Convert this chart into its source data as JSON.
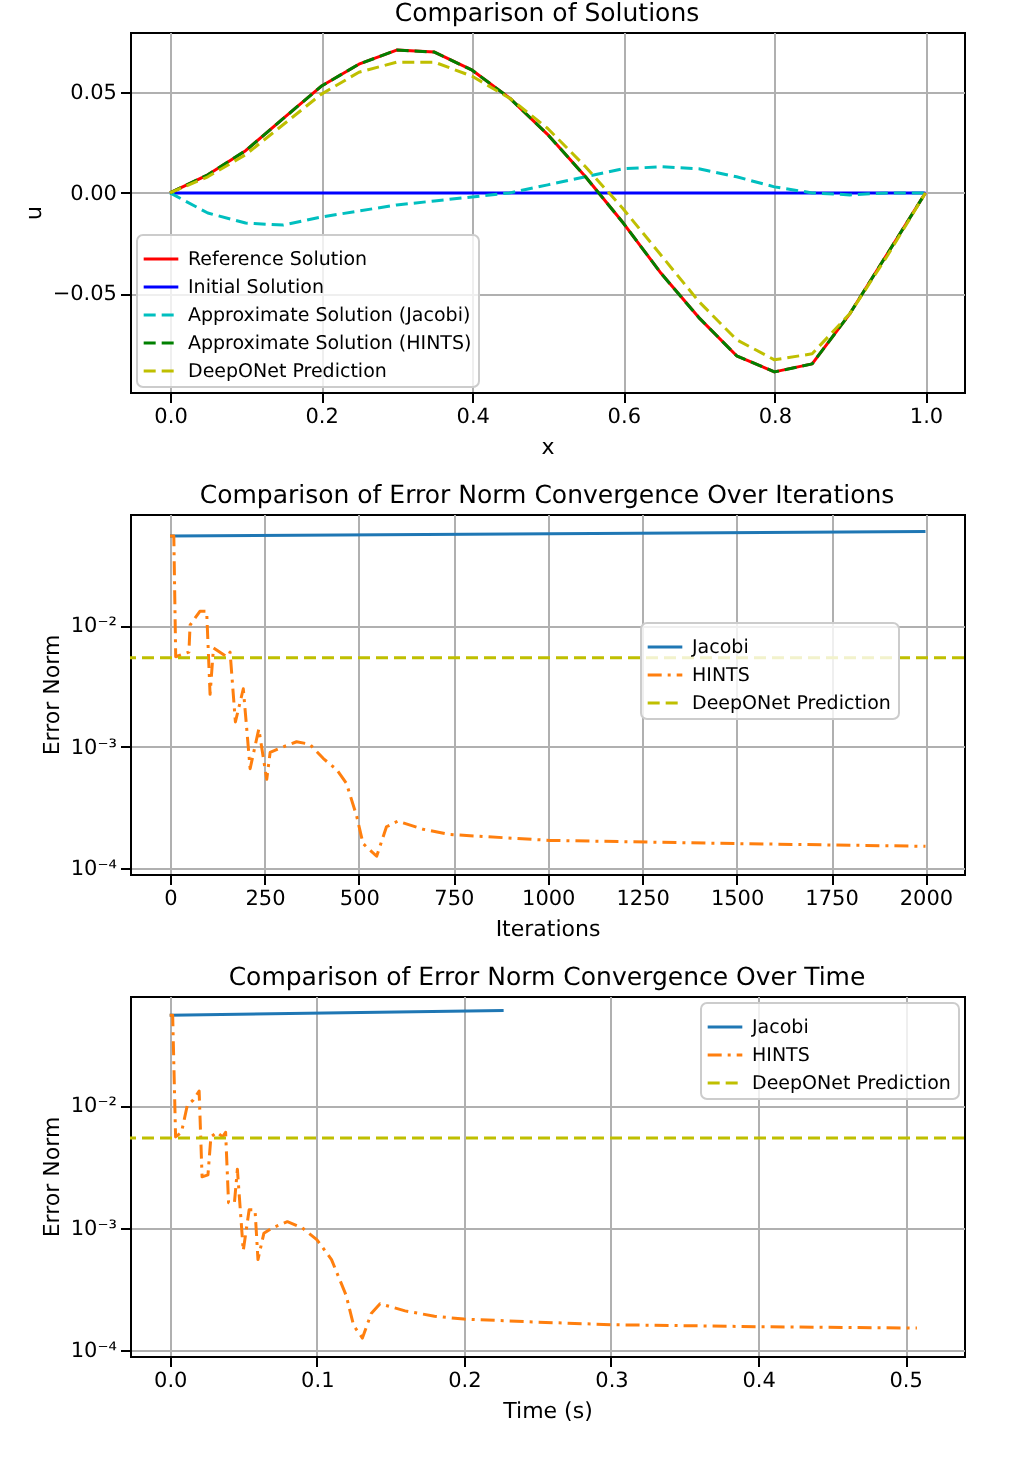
{
  "chart_data": [
    {
      "type": "line",
      "title": "Comparison of Solutions",
      "xlabel": "x",
      "ylabel": "u",
      "xlim": [
        -0.053,
        1.051
      ],
      "ylim": [
        -0.099,
        0.08
      ],
      "xticks": [
        {
          "value": 0,
          "label": "0.0"
        },
        {
          "value": 0.2,
          "label": "0.2"
        },
        {
          "value": 0.4,
          "label": "0.4"
        },
        {
          "value": 0.6,
          "label": "0.6"
        },
        {
          "value": 0.8,
          "label": "0.8"
        },
        {
          "value": 1,
          "label": "1.0"
        }
      ],
      "yticks": [
        {
          "value": -0.05,
          "label": "−0.05"
        },
        {
          "value": 0,
          "label": "0.00"
        },
        {
          "value": 0.05,
          "label": "0.05"
        }
      ],
      "grid": true,
      "legend": "bottom left",
      "x": [
        0,
        0.05,
        0.1,
        0.15,
        0.2,
        0.25,
        0.3,
        0.35,
        0.4,
        0.45,
        0.5,
        0.55,
        0.6,
        0.65,
        0.7,
        0.75,
        0.8,
        0.85,
        0.9,
        0.95,
        1
      ],
      "series": [
        {
          "name": "Reference Solution",
          "color": "#ff0000",
          "line_style": "solid",
          "values": [
            0,
            0.009,
            0.021,
            0.037,
            0.053,
            0.064,
            0.071,
            0.07,
            0.061,
            0.047,
            0.029,
            0.008,
            -0.015,
            -0.04,
            -0.062,
            -0.081,
            -0.089,
            -0.085,
            -0.06,
            -0.03,
            0
          ]
        },
        {
          "name": "Initial Solution",
          "color": "#0000ff",
          "line_style": "solid",
          "values": [
            0,
            0,
            0,
            0,
            0,
            0,
            0,
            0,
            0,
            0,
            0,
            0,
            0,
            0,
            0,
            0,
            0,
            0,
            0,
            0,
            0
          ]
        },
        {
          "name": "Approximate Solution (Jacobi)",
          "color": "#00bfbf",
          "line_style": "dashed",
          "values": [
            0,
            -0.01,
            -0.015,
            -0.016,
            -0.012,
            -0.009,
            -0.006,
            -0.004,
            -0.002,
            0,
            0.004,
            0.008,
            0.012,
            0.013,
            0.012,
            0.008,
            0.003,
            0,
            -0.001,
            0,
            0
          ]
        },
        {
          "name": "Approximate Solution (HINTS)",
          "color": "#008000",
          "line_style": "dashed",
          "values": [
            0,
            0.009,
            0.021,
            0.037,
            0.053,
            0.064,
            0.071,
            0.07,
            0.061,
            0.047,
            0.029,
            0.008,
            -0.015,
            -0.04,
            -0.062,
            -0.081,
            -0.089,
            -0.085,
            -0.06,
            -0.03,
            0
          ]
        },
        {
          "name": "DeepONet Prediction",
          "color": "#bfbf00",
          "line_style": "dashed",
          "values": [
            0,
            0.008,
            0.019,
            0.034,
            0.049,
            0.06,
            0.065,
            0.065,
            0.058,
            0.047,
            0.032,
            0.013,
            -0.008,
            -0.031,
            -0.054,
            -0.073,
            -0.083,
            -0.08,
            -0.06,
            -0.031,
            0
          ]
        }
      ]
    },
    {
      "type": "line",
      "title": "Comparison of Error Norm Convergence Over Iterations",
      "xlabel": "Iterations",
      "ylabel": "Error Norm",
      "log": "y",
      "xlim": [
        -106,
        2102
      ],
      "ylim": [
        9e-05,
        0.082
      ],
      "xticks": [
        0,
        250,
        500,
        750,
        1000,
        1250,
        1500,
        1750,
        2000
      ],
      "yticks": [
        {
          "value": 0.0001,
          "label": "10⁻⁴"
        },
        {
          "value": 0.001,
          "label": "10⁻³"
        },
        {
          "value": 0.01,
          "label": "10⁻²"
        }
      ],
      "grid": true,
      "legend": "right",
      "series": [
        {
          "name": "Jacobi",
          "color": "#1f77b4",
          "line_style": "solid",
          "x": [
            0,
            2000
          ],
          "values": [
            0.054,
            0.059
          ]
        },
        {
          "name": "HINTS",
          "color": "#ff7f0e",
          "line_style": "dashdot",
          "x": [
            0,
            10,
            15,
            50,
            53,
            79,
            97,
            106,
            115,
            150,
            159,
            173,
            194,
            212,
            235,
            256,
            265,
            300,
            335,
            370,
            406,
            441,
            467,
            494,
            511,
            547,
            573,
            603,
            670,
            741,
            1005,
            1499,
            2000
          ],
          "values": [
            0.054,
            0.054,
            0.0055,
            0.006,
            0.01,
            0.013,
            0.013,
            0.0027,
            0.0065,
            0.0055,
            0.006,
            0.0016,
            0.003,
            0.00066,
            0.0014,
            0.00054,
            0.0009,
            0.001,
            0.0011,
            0.00105,
            0.0008,
            0.00065,
            0.0005,
            0.00027,
            0.00016,
            0.000126,
            0.00022,
            0.000245,
            0.00021,
            0.00019,
            0.00017,
            0.00016,
            0.000152
          ]
        }
      ],
      "ref_lines": [
        {
          "axis": "y",
          "value": 0.0054,
          "label": "DeepONet Prediction",
          "color": "#bfbf00",
          "line_style": "dashed"
        }
      ]
    },
    {
      "type": "line",
      "title": "Comparison of Error Norm Convergence Over Time",
      "xlabel": "Time (s)",
      "ylabel": "Error Norm",
      "log": "y",
      "xlim": [
        -0.027,
        0.54
      ],
      "ylim": [
        9e-05,
        0.0775
      ],
      "xticks": [
        {
          "value": 0,
          "label": "0.0"
        },
        {
          "value": 0.1,
          "label": "0.1"
        },
        {
          "value": 0.2,
          "label": "0.2"
        },
        {
          "value": 0.3,
          "label": "0.3"
        },
        {
          "value": 0.4,
          "label": "0.4"
        },
        {
          "value": 0.5,
          "label": "0.5"
        }
      ],
      "yticks": [
        {
          "value": 0.0001,
          "label": "10⁻⁴"
        },
        {
          "value": 0.001,
          "label": "10⁻³"
        },
        {
          "value": 0.01,
          "label": "10⁻²"
        }
      ],
      "grid": true,
      "legend": "top right",
      "series": [
        {
          "name": "Jacobi",
          "color": "#1f77b4",
          "line_style": "solid",
          "x": [
            0,
            0.227
          ],
          "values": [
            0.054,
            0.059
          ]
        },
        {
          "name": "HINTS",
          "color": "#ff7f0e",
          "line_style": "dashdot",
          "x": [
            0,
            0.002,
            0.004,
            0.008,
            0.012,
            0.016,
            0.02,
            0.022,
            0.026,
            0.028,
            0.032,
            0.036,
            0.038,
            0.04,
            0.044,
            0.046,
            0.05,
            0.054,
            0.058,
            0.06,
            0.064,
            0.07,
            0.08,
            0.09,
            0.1,
            0.11,
            0.12,
            0.125,
            0.131,
            0.137,
            0.143,
            0.16,
            0.18,
            0.2,
            0.25,
            0.3,
            0.4,
            0.508
          ],
          "values": [
            0.054,
            0.054,
            0.0055,
            0.006,
            0.01,
            0.011,
            0.013,
            0.0026,
            0.0027,
            0.0055,
            0.006,
            0.0055,
            0.006,
            0.0016,
            0.0016,
            0.003,
            0.00065,
            0.0014,
            0.0014,
            0.00055,
            0.0009,
            0.001,
            0.00112,
            0.001,
            0.0008,
            0.00055,
            0.00028,
            0.00016,
            0.000126,
            0.0002,
            0.00024,
            0.00021,
            0.00019,
            0.00018,
            0.00017,
            0.000162,
            0.000156,
            0.000152
          ]
        }
      ],
      "ref_lines": [
        {
          "axis": "y",
          "value": 0.0054,
          "label": "DeepONet Prediction",
          "color": "#bfbf00",
          "line_style": "dashed"
        }
      ]
    }
  ]
}
